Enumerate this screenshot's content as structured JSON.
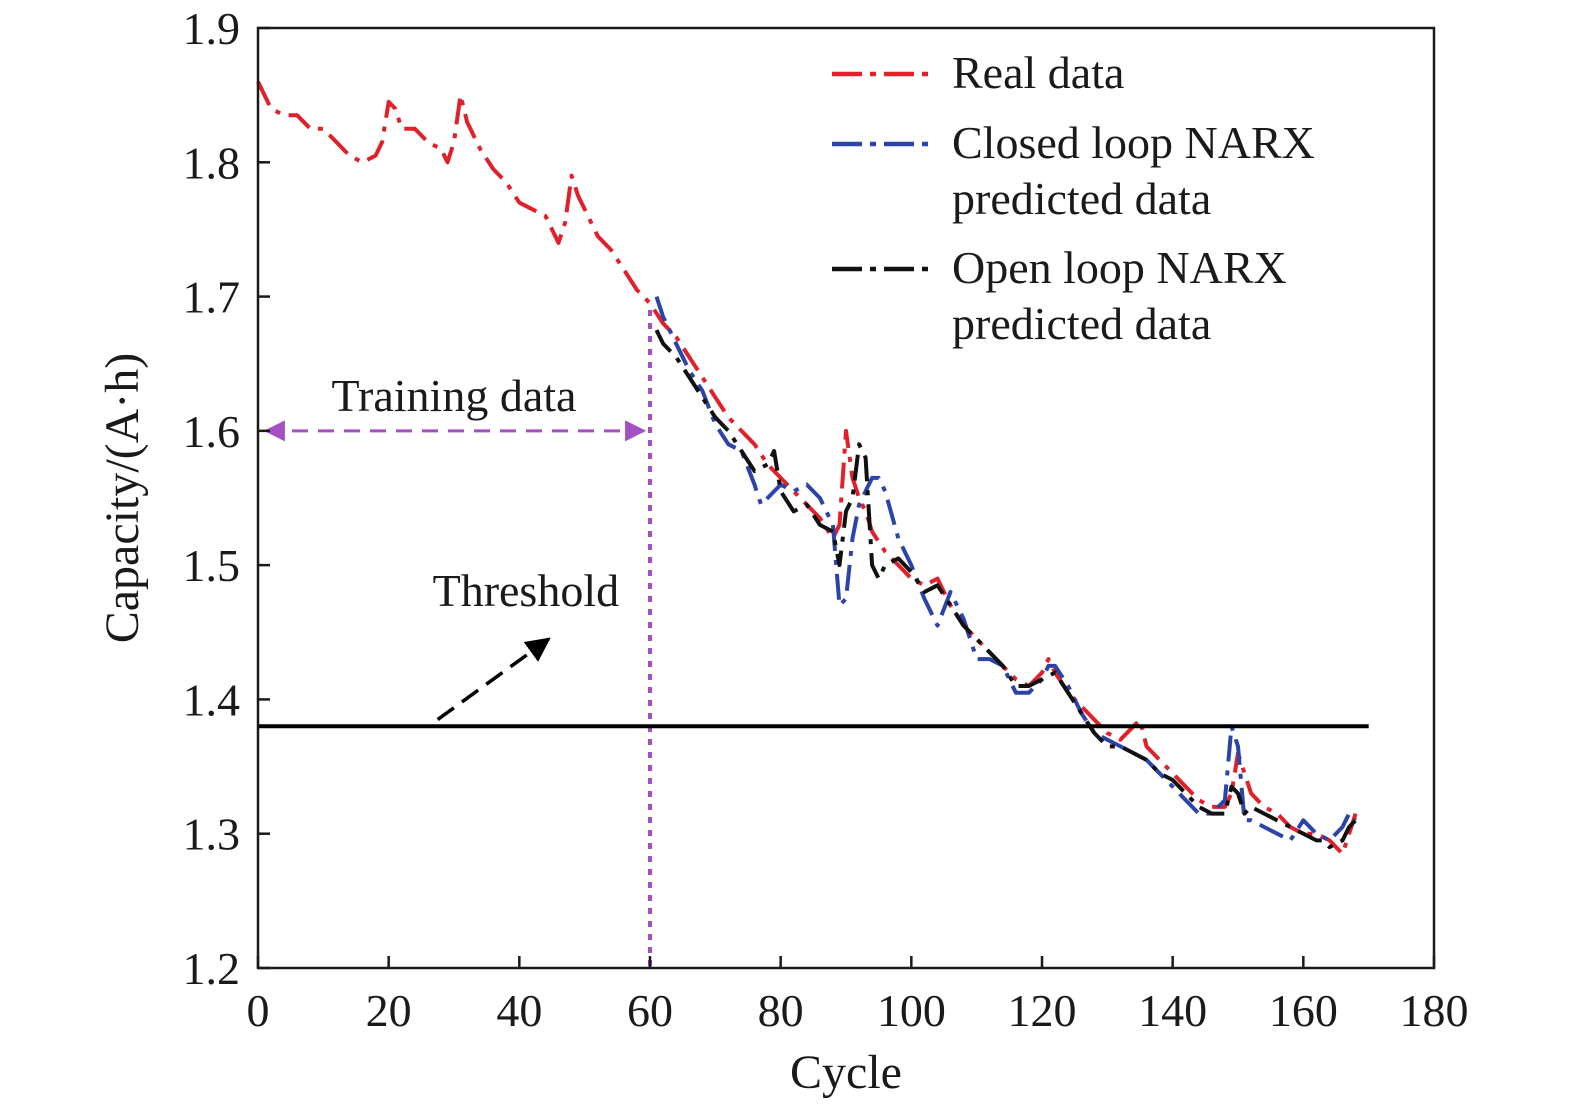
{
  "chart_data": {
    "type": "line",
    "xlabel": "Cycle",
    "ylabel": "Capacity/(A·h)",
    "xlim": [
      0,
      180
    ],
    "ylim": [
      1.2,
      1.9
    ],
    "xticks": [
      0,
      20,
      40,
      60,
      80,
      100,
      120,
      140,
      160,
      180
    ],
    "xtick_labels": [
      "0",
      "20",
      "40",
      "60",
      "80",
      "100",
      "120",
      "140",
      "160",
      "180"
    ],
    "yticks": [
      1.2,
      1.3,
      1.4,
      1.5,
      1.6,
      1.7,
      1.8,
      1.9
    ],
    "ytick_labels": [
      "1.2",
      "1.3",
      "1.4",
      "1.5",
      "1.6",
      "1.7",
      "1.8",
      "1.9"
    ],
    "grid": false,
    "legend_position": "top-right",
    "series": [
      {
        "name": "Real data",
        "color": "#e0202a",
        "dash": "dash-dot",
        "x": [
          0,
          2,
          4,
          6,
          8,
          10,
          12,
          14,
          16,
          18,
          19,
          20,
          21,
          22,
          24,
          26,
          28,
          29,
          30,
          31,
          32,
          34,
          36,
          38,
          40,
          42,
          44,
          46,
          47,
          48,
          49,
          50,
          52,
          54,
          56,
          58,
          60,
          62,
          64,
          66,
          68,
          70,
          72,
          74,
          76,
          78,
          80,
          82,
          84,
          86,
          88,
          89,
          90,
          91,
          92,
          93,
          94,
          96,
          98,
          100,
          102,
          104,
          106,
          108,
          110,
          112,
          114,
          116,
          118,
          120,
          121,
          122,
          124,
          126,
          128,
          130,
          132,
          134,
          135,
          136,
          138,
          140,
          142,
          144,
          146,
          148,
          149,
          150,
          151,
          152,
          154,
          156,
          158,
          160,
          162,
          164,
          165,
          166,
          167,
          168
        ],
        "values": [
          1.86,
          1.84,
          1.835,
          1.835,
          1.825,
          1.825,
          1.815,
          1.805,
          1.8,
          1.805,
          1.815,
          1.845,
          1.84,
          1.825,
          1.825,
          1.815,
          1.81,
          1.8,
          1.815,
          1.85,
          1.83,
          1.81,
          1.795,
          1.785,
          1.77,
          1.765,
          1.76,
          1.74,
          1.755,
          1.79,
          1.775,
          1.765,
          1.745,
          1.735,
          1.72,
          1.705,
          1.695,
          1.68,
          1.67,
          1.655,
          1.64,
          1.625,
          1.61,
          1.6,
          1.59,
          1.575,
          1.565,
          1.555,
          1.545,
          1.535,
          1.52,
          1.53,
          1.6,
          1.565,
          1.55,
          1.54,
          1.525,
          1.51,
          1.5,
          1.49,
          1.485,
          1.49,
          1.47,
          1.455,
          1.445,
          1.435,
          1.425,
          1.415,
          1.41,
          1.42,
          1.43,
          1.42,
          1.405,
          1.395,
          1.385,
          1.375,
          1.37,
          1.38,
          1.385,
          1.365,
          1.355,
          1.345,
          1.335,
          1.325,
          1.32,
          1.32,
          1.33,
          1.36,
          1.345,
          1.33,
          1.32,
          1.315,
          1.305,
          1.3,
          1.3,
          1.295,
          1.29,
          1.285,
          1.3,
          1.315
        ]
      },
      {
        "name": "Closed loop NARX predicted data",
        "color": "#2c44a8",
        "dash": "dash-dot",
        "x": [
          61,
          62,
          64,
          66,
          68,
          70,
          72,
          74,
          76,
          77,
          78,
          80,
          82,
          84,
          86,
          88,
          89,
          90,
          91,
          92,
          93,
          94,
          95,
          96,
          98,
          100,
          102,
          104,
          106,
          108,
          110,
          112,
          114,
          116,
          118,
          120,
          121,
          122,
          124,
          126,
          128,
          130,
          132,
          134,
          136,
          138,
          140,
          142,
          144,
          146,
          148,
          149,
          150,
          151,
          152,
          154,
          156,
          158,
          160,
          162,
          164,
          166,
          167,
          168
        ],
        "values": [
          1.7,
          1.685,
          1.665,
          1.645,
          1.63,
          1.605,
          1.59,
          1.585,
          1.56,
          1.545,
          1.55,
          1.56,
          1.555,
          1.56,
          1.55,
          1.53,
          1.47,
          1.475,
          1.52,
          1.545,
          1.555,
          1.565,
          1.565,
          1.555,
          1.52,
          1.5,
          1.475,
          1.455,
          1.48,
          1.46,
          1.43,
          1.43,
          1.425,
          1.405,
          1.405,
          1.415,
          1.425,
          1.425,
          1.41,
          1.39,
          1.375,
          1.37,
          1.365,
          1.36,
          1.355,
          1.345,
          1.335,
          1.325,
          1.315,
          1.315,
          1.325,
          1.38,
          1.365,
          1.31,
          1.31,
          1.305,
          1.3,
          1.295,
          1.31,
          1.3,
          1.295,
          1.305,
          1.315,
          1.31
        ]
      },
      {
        "name": "Open loop NARX predicted data",
        "color": "#111111",
        "dash": "dash-dot",
        "x": [
          61,
          62,
          64,
          66,
          68,
          70,
          72,
          74,
          76,
          78,
          79,
          80,
          82,
          84,
          86,
          88,
          89,
          90,
          91,
          92,
          93,
          94,
          95,
          96,
          98,
          100,
          102,
          104,
          106,
          108,
          110,
          112,
          114,
          116,
          118,
          120,
          122,
          124,
          126,
          128,
          130,
          132,
          134,
          136,
          138,
          140,
          142,
          144,
          146,
          148,
          149,
          150,
          151,
          152,
          154,
          156,
          158,
          160,
          162,
          163,
          164,
          166,
          167,
          168
        ],
        "values": [
          1.675,
          1.665,
          1.655,
          1.64,
          1.625,
          1.61,
          1.6,
          1.585,
          1.57,
          1.575,
          1.585,
          1.555,
          1.54,
          1.545,
          1.53,
          1.525,
          1.5,
          1.54,
          1.55,
          1.59,
          1.58,
          1.5,
          1.49,
          1.5,
          1.505,
          1.495,
          1.48,
          1.485,
          1.47,
          1.455,
          1.445,
          1.435,
          1.425,
          1.41,
          1.41,
          1.415,
          1.42,
          1.405,
          1.39,
          1.375,
          1.365,
          1.365,
          1.36,
          1.355,
          1.345,
          1.34,
          1.33,
          1.32,
          1.315,
          1.315,
          1.335,
          1.33,
          1.315,
          1.32,
          1.315,
          1.31,
          1.305,
          1.3,
          1.295,
          1.295,
          1.29,
          1.295,
          1.305,
          1.31
        ]
      }
    ],
    "threshold": {
      "y": 1.38,
      "label": "Threshold",
      "color": "#000000"
    },
    "training_marker": {
      "x": 60,
      "label": "Training data",
      "color": "#a44fc2",
      "arrow_y": 1.6
    },
    "legend": [
      {
        "lines": [
          "Real data"
        ],
        "color": "#e0202a"
      },
      {
        "lines": [
          "Closed loop NARX",
          "predicted data"
        ],
        "color": "#2c44a8"
      },
      {
        "lines": [
          "Open loop NARX",
          "predicted data"
        ],
        "color": "#111111"
      }
    ]
  }
}
